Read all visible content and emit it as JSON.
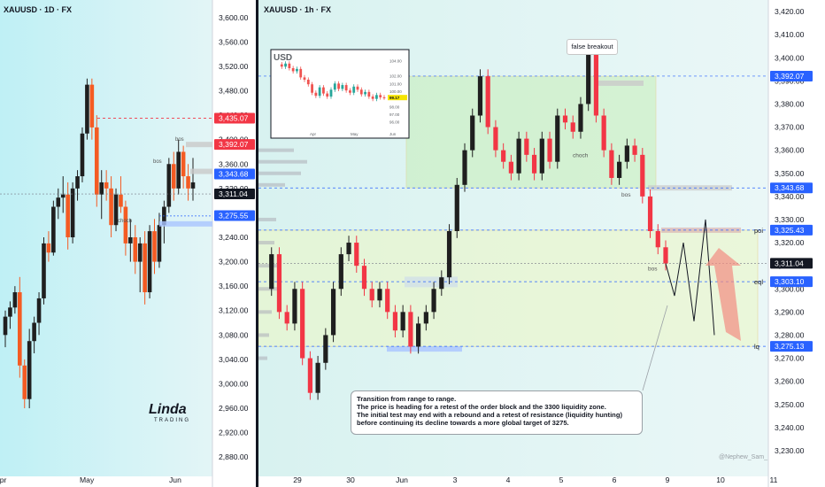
{
  "left_chart": {
    "symbol": "XAUUSD · 1D · FX",
    "y_ticks": [
      "3,600.00",
      "3,560.00",
      "3,520.00",
      "3,480.00",
      "3,440.00",
      "3,400.00",
      "3,360.00",
      "3,320.00",
      "3,280.00",
      "3,240.00",
      "3,200.00",
      "3,160.00",
      "3,120.00",
      "3,080.00",
      "3,040.00",
      "3,000.00",
      "2,960.00",
      "2,920.00",
      "2,880.00"
    ],
    "x_ticks": [
      "Apr",
      "May",
      "Jun"
    ],
    "price_tags": [
      {
        "text": "3,435.07",
        "color": "#f23645"
      },
      {
        "text": "3,392.07",
        "color": "#f23645"
      },
      {
        "text": "3,343.68",
        "color": "#2962ff"
      },
      {
        "text": "3,311.04",
        "color": "#131722"
      },
      {
        "text": "3,275.55",
        "color": "#2962ff"
      }
    ],
    "annotations": [
      "bos",
      "bos",
      "choch"
    ]
  },
  "right_chart": {
    "symbol": "XAUUSD · 1h · FX",
    "y_ticks": [
      "3,420.00",
      "3,410.00",
      "3,400.00",
      "3,390.00",
      "3,380.00",
      "3,370.00",
      "3,360.00",
      "3,350.00",
      "3,340.00",
      "3,330.00",
      "3,320.00",
      "3,310.00",
      "3,300.00",
      "3,290.00",
      "3,280.00",
      "3,270.00",
      "3,260.00",
      "3,250.00",
      "3,240.00",
      "3,230.00"
    ],
    "x_ticks": [
      "29",
      "30",
      "Jun",
      "3",
      "4",
      "5",
      "6",
      "9",
      "10",
      "11"
    ],
    "price_tags": [
      {
        "text": "3,392.07",
        "color": "#2962ff"
      },
      {
        "text": "3,343.68",
        "color": "#2962ff"
      },
      {
        "text": "3,325.43",
        "color": "#2962ff"
      },
      {
        "text": "3,311.04",
        "color": "#131722"
      },
      {
        "text": "3,303.10",
        "color": "#2962ff"
      },
      {
        "text": "3,275.13",
        "color": "#2962ff"
      }
    ],
    "level_labels": [
      "poi",
      "eql",
      "lq"
    ],
    "annotations": [
      "false breakout",
      "choch",
      "bos",
      "bos"
    ],
    "watermark": "@Nephew_Sam_",
    "callout": [
      "Transition from range to range.",
      "The price is heading for a retest of the order block and the 3300 liquidity zone.",
      "The initial test may end with a rebound and a retest of resistance (liquidity hunting)",
      "before continuing its decline towards a more global target of 3275."
    ]
  },
  "inset": {
    "title": "USD",
    "x_ticks": [
      "Apr",
      "May",
      "Jun"
    ],
    "y_ticks": [
      "104.00",
      "102.00",
      "101.00",
      "100.00",
      "98.00",
      "97.00",
      "96.00"
    ],
    "last_value": "99.17"
  },
  "logo": {
    "brand": "Linda",
    "sub": "TRADING"
  },
  "chart_data": [
    {
      "type": "candlestick",
      "title": "XAUUSD · 1D · FX",
      "timeframe": "1D",
      "x_ticks": [
        "Apr",
        "May",
        "Jun"
      ],
      "ylim": [
        2860,
        3630
      ],
      "candles": [
        [
          3080,
          3120,
          3060,
          3110
        ],
        [
          3110,
          3135,
          3090,
          3125
        ],
        [
          3125,
          3160,
          3115,
          3150
        ],
        [
          3150,
          3175,
          3010,
          3030
        ],
        [
          3030,
          3040,
          2960,
          2975
        ],
        [
          2975,
          3090,
          2960,
          3070
        ],
        [
          3070,
          3110,
          3050,
          3100
        ],
        [
          3100,
          3150,
          3080,
          3140
        ],
        [
          3140,
          3240,
          3130,
          3230
        ],
        [
          3230,
          3250,
          3200,
          3215
        ],
        [
          3215,
          3300,
          3210,
          3290
        ],
        [
          3290,
          3320,
          3270,
          3305
        ],
        [
          3305,
          3340,
          3280,
          3310
        ],
        [
          3310,
          3330,
          3220,
          3240
        ],
        [
          3240,
          3330,
          3230,
          3320
        ],
        [
          3320,
          3350,
          3300,
          3340
        ],
        [
          3340,
          3420,
          3330,
          3410
        ],
        [
          3410,
          3500,
          3400,
          3490
        ],
        [
          3490,
          3500,
          3400,
          3420
        ],
        [
          3420,
          3440,
          3290,
          3310
        ],
        [
          3310,
          3350,
          3270,
          3330
        ],
        [
          3330,
          3350,
          3300,
          3320
        ],
        [
          3320,
          3340,
          3240,
          3260
        ],
        [
          3260,
          3320,
          3250,
          3310
        ],
        [
          3310,
          3340,
          3280,
          3290
        ],
        [
          3290,
          3300,
          3210,
          3230
        ],
        [
          3230,
          3270,
          3200,
          3240
        ],
        [
          3240,
          3260,
          3180,
          3200
        ],
        [
          3200,
          3240,
          3150,
          3230
        ],
        [
          3230,
          3250,
          3130,
          3150
        ],
        [
          3150,
          3260,
          3140,
          3250
        ],
        [
          3250,
          3270,
          3180,
          3200
        ],
        [
          3200,
          3280,
          3190,
          3260
        ],
        [
          3260,
          3300,
          3230,
          3290
        ],
        [
          3290,
          3370,
          3280,
          3360
        ],
        [
          3360,
          3380,
          3300,
          3320
        ],
        [
          3320,
          3400,
          3310,
          3380
        ],
        [
          3380,
          3390,
          3320,
          3340
        ],
        [
          3340,
          3360,
          3300,
          3320
        ],
        [
          3320,
          3370,
          3300,
          3330
        ]
      ]
    },
    {
      "type": "candlestick",
      "title": "XAUUSD · 1h · FX",
      "timeframe": "1h",
      "x_ticks": [
        "29",
        "30",
        "Jun",
        "3",
        "4",
        "5",
        "6",
        "9",
        "10",
        "11"
      ],
      "ylim": [
        3225,
        3430
      ],
      "path": [
        [
          0,
          3300
        ],
        [
          4,
          3315
        ],
        [
          8,
          3290
        ],
        [
          12,
          3285
        ],
        [
          16,
          3300
        ],
        [
          20,
          3270
        ],
        [
          24,
          3255
        ],
        [
          28,
          3268
        ],
        [
          32,
          3280
        ],
        [
          36,
          3300
        ],
        [
          40,
          3315
        ],
        [
          44,
          3320
        ],
        [
          48,
          3310
        ],
        [
          52,
          3300
        ],
        [
          56,
          3295
        ],
        [
          60,
          3300
        ],
        [
          64,
          3290
        ],
        [
          68,
          3282
        ],
        [
          72,
          3290
        ],
        [
          76,
          3275
        ],
        [
          80,
          3285
        ],
        [
          84,
          3290
        ],
        [
          88,
          3300
        ],
        [
          92,
          3305
        ],
        [
          96,
          3325
        ],
        [
          100,
          3345
        ],
        [
          104,
          3360
        ],
        [
          108,
          3375
        ],
        [
          112,
          3392
        ],
        [
          116,
          3370
        ],
        [
          120,
          3360
        ],
        [
          124,
          3355
        ],
        [
          128,
          3350
        ],
        [
          132,
          3365
        ],
        [
          136,
          3358
        ],
        [
          140,
          3350
        ],
        [
          144,
          3365
        ],
        [
          148,
          3355
        ],
        [
          152,
          3375
        ],
        [
          156,
          3372
        ],
        [
          160,
          3368
        ],
        [
          164,
          3380
        ],
        [
          168,
          3403
        ],
        [
          172,
          3375
        ],
        [
          176,
          3360
        ],
        [
          180,
          3348
        ],
        [
          184,
          3355
        ],
        [
          188,
          3362
        ],
        [
          192,
          3358
        ],
        [
          196,
          3340
        ],
        [
          200,
          3325
        ],
        [
          204,
          3318
        ],
        [
          208,
          3311
        ]
      ],
      "levels": [
        {
          "label": "3,392.07",
          "y": 3392.07
        },
        {
          "label": "3,343.68",
          "y": 3343.68
        },
        {
          "label": "3,325.43",
          "y": 3325.43,
          "name": "poi"
        },
        {
          "label": "3,303.10",
          "y": 3303.1,
          "name": "eql"
        },
        {
          "label": "3,275.13",
          "y": 3275.13,
          "name": "lq"
        }
      ],
      "forecast_path": [
        3311,
        3297,
        3320,
        3286,
        3330,
        3280
      ],
      "last_price": 3311.04
    },
    {
      "type": "candlestick",
      "title": "USD",
      "x_ticks": [
        "Apr",
        "May",
        "Jun"
      ],
      "y_ticks": [
        "104.00",
        "102.00",
        "101.00",
        "100.00",
        "98.00",
        "97.00",
        "96.00"
      ],
      "last_value": 99.17
    }
  ]
}
